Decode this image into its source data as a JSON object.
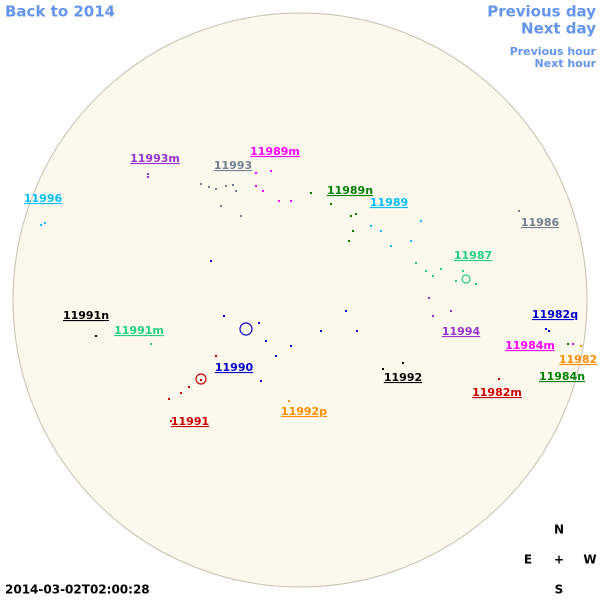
{
  "navigation": {
    "back": "Back to 2014",
    "previous_day": "Previous day",
    "next_day": "Next day",
    "previous_hour": "Previous hour",
    "next_hour": "Next hour"
  },
  "regions": [
    {
      "label": "11993m",
      "color": "#9932cc"
    },
    {
      "label": "11993",
      "color": "#708090"
    },
    {
      "label": "11989m",
      "color": "#ff00ff"
    },
    {
      "label": "11996",
      "color": "#00bfff"
    },
    {
      "label": "11989n",
      "color": "#008000"
    },
    {
      "label": "11989",
      "color": "#00bfff"
    },
    {
      "label": "11986",
      "color": "#708090"
    },
    {
      "label": "11987",
      "color": "#20d080"
    },
    {
      "label": "11991n",
      "color": "#000000"
    },
    {
      "label": "11991m",
      "color": "#20d080"
    },
    {
      "label": "11994",
      "color": "#9932cc"
    },
    {
      "label": "11982q",
      "color": "#0000cd"
    },
    {
      "label": "11984m",
      "color": "#ff00ff"
    },
    {
      "label": "11982",
      "color": "#ff8c00"
    },
    {
      "label": "11990",
      "color": "#0000cd"
    },
    {
      "label": "11992",
      "color": "#000000"
    },
    {
      "label": "11984n",
      "color": "#008000"
    },
    {
      "label": "11982m",
      "color": "#cc0000"
    },
    {
      "label": "11992p",
      "color": "#ff8c00"
    },
    {
      "label": "11991",
      "color": "#cc0000"
    }
  ],
  "compass": {
    "north": "N",
    "east": "E",
    "center": "+",
    "west": "W",
    "south": "S"
  },
  "timestamp": "2014-03-02T02:00:28"
}
